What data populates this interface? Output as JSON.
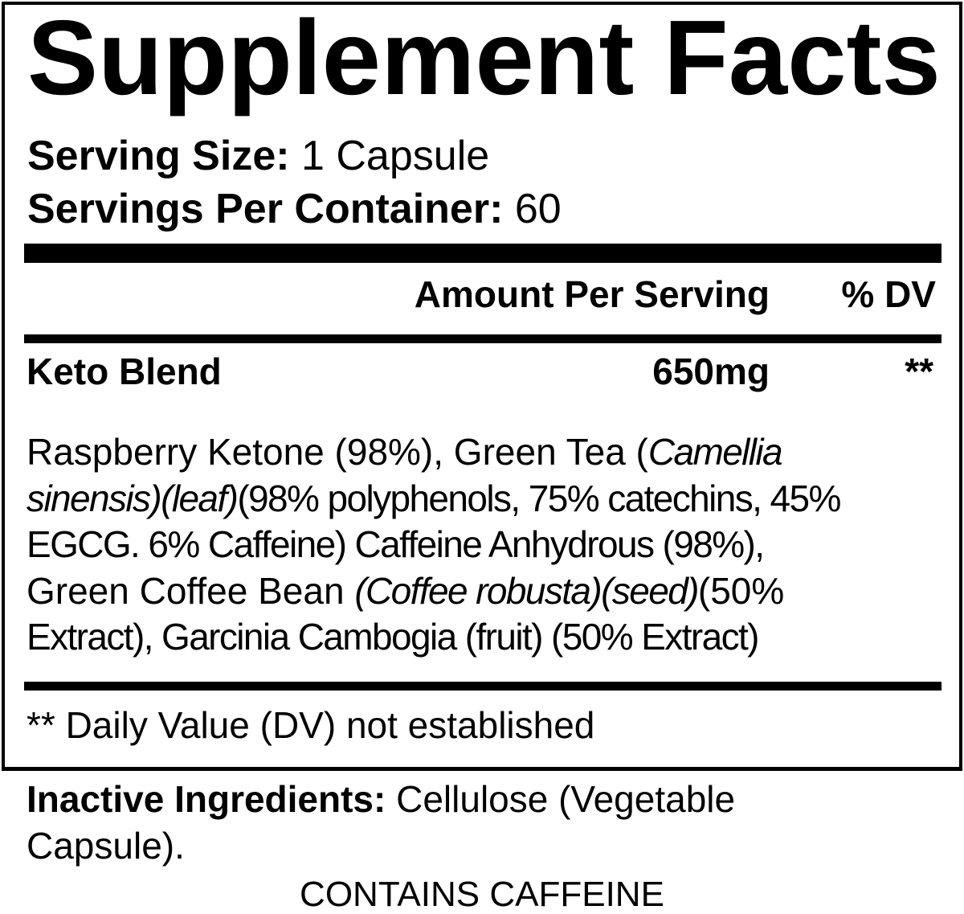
{
  "title": "Supplement Facts",
  "serving_size": {
    "label": "Serving Size:",
    "value": "1 Capsule"
  },
  "servings_per_container": {
    "label": "Servings Per Container:",
    "value": "60"
  },
  "columns": {
    "amount": "Amount Per Serving",
    "dv": "% DV"
  },
  "blend": {
    "name": "Keto Blend",
    "amount": "650mg",
    "dv": "**"
  },
  "ingredients_lines": [
    [
      {
        "t": "Raspberry Ketone (98%), Green Tea (",
        "i": false
      },
      {
        "t": "Camellia",
        "i": true
      }
    ],
    [
      {
        "t": "sinensis)(leaf)",
        "i": true
      },
      {
        "t": "(98% polyphenols, 75% catechins, 45%",
        "i": false
      }
    ],
    [
      {
        "t": "EGCG. 6% Caffeine)",
        "i": false
      },
      {
        "t": " Caffeine Anhydrous (98%),",
        "i": false
      }
    ],
    [
      {
        "t": "Green Coffee Bean ",
        "i": false
      },
      {
        "t": "(Coffee robusta)(seed)",
        "i": true
      },
      {
        "t": "(50%",
        "i": false
      }
    ],
    [
      {
        "t": "Extract),",
        "i": false
      },
      {
        "t": " Garcinia Cambogia (fruit) (50% Extract)",
        "i": false
      }
    ]
  ],
  "footnote": "** Daily Value (DV) not established",
  "inactive": {
    "label": "Inactive Ingredients:",
    "line1": " Cellulose (Vegetable",
    "line2": "Capsule)."
  },
  "warning": "CONTAINS CAFFEINE"
}
